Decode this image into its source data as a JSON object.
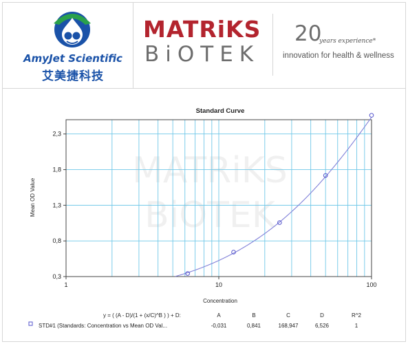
{
  "header": {
    "amyjet": {
      "name": "AmyJet Scientific",
      "name_cn": "艾美捷科技",
      "brand_color": "#1a52a8",
      "accent_color": "#2aa14b"
    },
    "matriks": {
      "top": "MATRiKS",
      "bottom": "BiOTEK",
      "red": "#b3242e",
      "gray": "#6d6d6d"
    },
    "experience": {
      "number": "20",
      "text": "years experience*",
      "tagline": "innovation for health & wellness"
    }
  },
  "chart_data": {
    "type": "scatter",
    "title": "Standard Curve",
    "xlabel": "Concentration",
    "ylabel": "Mean OD Value",
    "x_scale": "log",
    "xlim": [
      1,
      100
    ],
    "ylim": [
      0.3,
      2.5
    ],
    "x_ticks": [
      "1",
      "10",
      "100"
    ],
    "y_ticks": [
      "0,3",
      "0,8",
      "1,3",
      "1,8",
      "2,3"
    ],
    "y_tick_values": [
      0.3,
      0.8,
      1.3,
      1.8,
      2.3
    ],
    "grid": true,
    "watermark": [
      "MATRiKS",
      "BiOTEK"
    ],
    "series": [
      {
        "x": [
          6.25,
          12.5,
          25,
          50,
          100
        ],
        "y": [
          0.343,
          0.643,
          1.057,
          1.718,
          2.562
        ],
        "color": "#5555cc"
      }
    ],
    "fit": {
      "equation": "y = ( (A - D)/(1 + (x/C)^B ) ) + D:",
      "columns": [
        "A",
        "B",
        "C",
        "D",
        "R^2"
      ],
      "row_label": "STD#1 (Standards: Concentration vs Mean OD Val...",
      "values": [
        "-0,031",
        "0,841",
        "168,947",
        "6,526",
        "1"
      ],
      "params": {
        "A": -0.031,
        "B": 0.841,
        "C": 168.947,
        "D": 6.526
      },
      "curve_color": "#8080d8"
    }
  }
}
